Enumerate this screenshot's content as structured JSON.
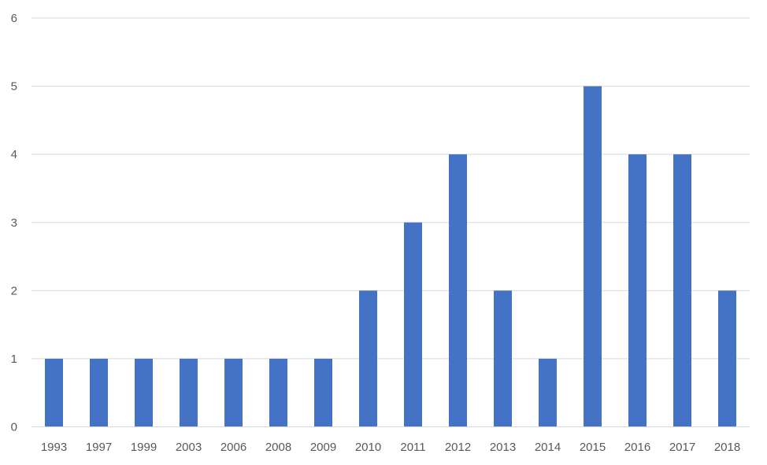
{
  "chart_data": {
    "type": "bar",
    "title": "",
    "xlabel": "",
    "ylabel": "",
    "categories": [
      "1993",
      "1997",
      "1999",
      "2003",
      "2006",
      "2008",
      "2009",
      "2010",
      "2011",
      "2012",
      "2013",
      "2014",
      "2015",
      "2016",
      "2017",
      "2018"
    ],
    "values": [
      1,
      1,
      1,
      1,
      1,
      1,
      1,
      2,
      3,
      4,
      2,
      1,
      5,
      4,
      4,
      2
    ],
    "ylim": [
      0,
      6
    ],
    "yticks": [
      "0",
      "1",
      "2",
      "3",
      "4",
      "5",
      "6"
    ],
    "grid": true,
    "legend": "none",
    "colors": {
      "bar": "#4472c4",
      "grid": "#d9d9d9",
      "text": "#595959"
    }
  }
}
